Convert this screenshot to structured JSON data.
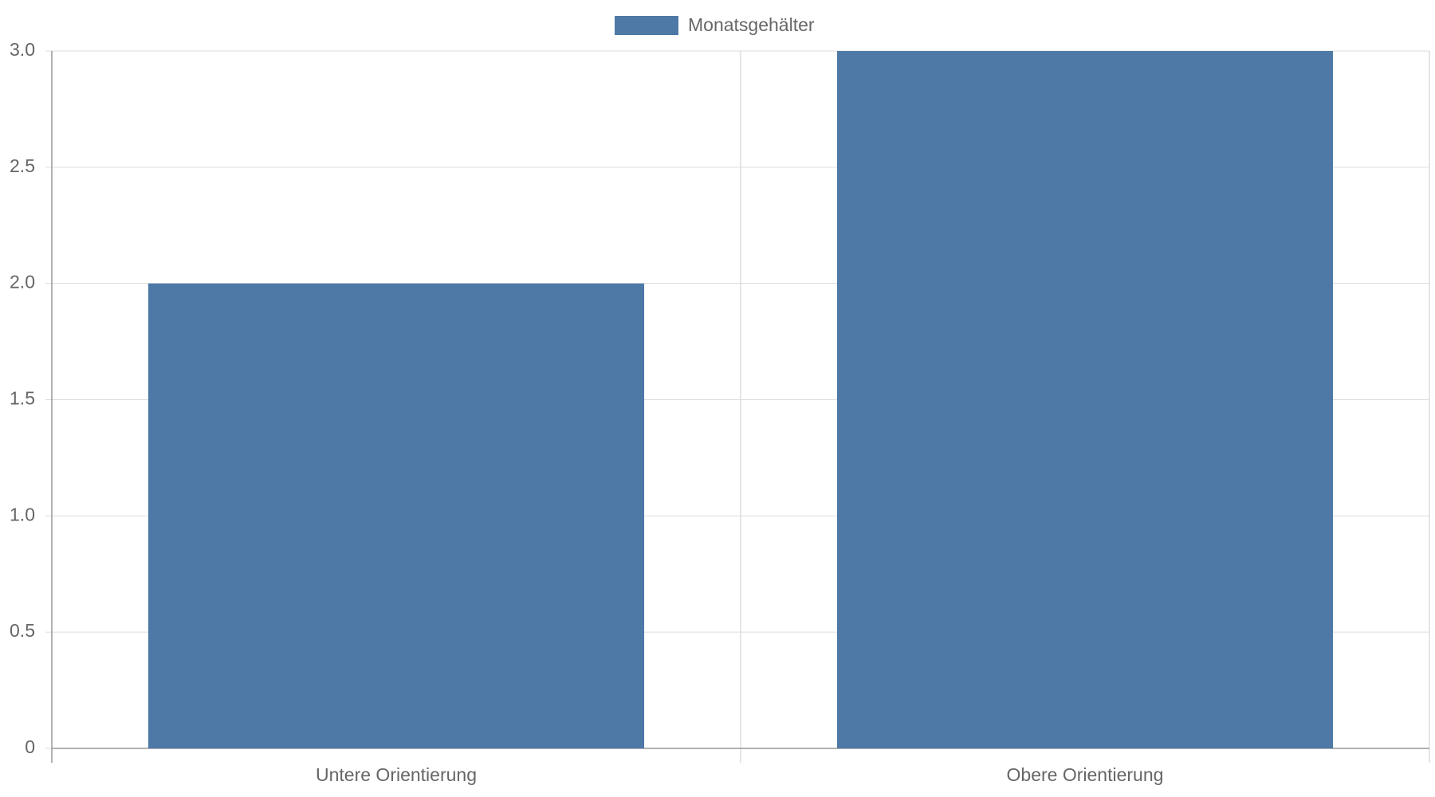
{
  "chart_data": {
    "type": "bar",
    "legend": "Monatsgehälter",
    "categories": [
      "Untere Orientierung",
      "Obere Orientierung"
    ],
    "values": [
      2,
      3
    ],
    "color": "#4e79a7",
    "ylim": [
      0,
      3
    ],
    "yticks": [
      0,
      0.5,
      {
        "value": 1,
        "label": "1.0"
      },
      1.5,
      {
        "value": 2,
        "label": "2.0"
      },
      2.5,
      {
        "value": 3,
        "label": "3.0"
      }
    ],
    "grid": true
  }
}
